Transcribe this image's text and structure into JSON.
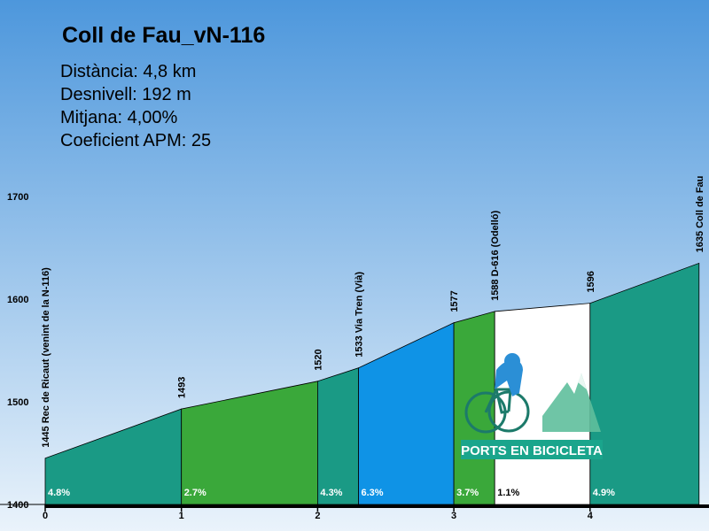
{
  "header": {
    "title": "Coll de Fau_vN-116",
    "stats": [
      "Distància: 4,8 km",
      "Desnivell: 192 m",
      "Mitjana: 4,00%",
      "Coeficient APM: 25"
    ]
  },
  "logo": {
    "text": "PORTS EN BICICLETA"
  },
  "colors": {
    "sky_top": "#4d97dc",
    "sky_bottom": "#eaf3fb",
    "teal": "#1a9a85",
    "green": "#3aa83a",
    "blue": "#0f93e6",
    "white": "#ffffff",
    "outline": "#000000"
  },
  "chart_data": {
    "type": "area",
    "xlim": [
      0,
      4.8
    ],
    "ylim": [
      1400,
      1700
    ],
    "x_ticks": [
      "0",
      "1",
      "2",
      "3",
      "4"
    ],
    "y_ticks": [
      "1400",
      "1500",
      "1600",
      "1700"
    ],
    "points": [
      {
        "km": 0.0,
        "alt": 1445,
        "label": "1445 Rec de Ricaut (venint de la N-116)"
      },
      {
        "km": 1.0,
        "alt": 1493,
        "label": "1493"
      },
      {
        "km": 2.0,
        "alt": 1520,
        "label": "1520"
      },
      {
        "km": 2.3,
        "alt": 1533,
        "label": "1533 Via Tren (Vià)"
      },
      {
        "km": 3.0,
        "alt": 1577,
        "label": "1577"
      },
      {
        "km": 3.3,
        "alt": 1588,
        "label": "1588 D-616 (Odelló)"
      },
      {
        "km": 4.0,
        "alt": 1596,
        "label": "1596"
      },
      {
        "km": 4.8,
        "alt": 1635,
        "label": "1635 Coll de Fau"
      }
    ],
    "segments": [
      {
        "from": 0.0,
        "to": 1.0,
        "grade": "4.8%",
        "color": "teal"
      },
      {
        "from": 1.0,
        "to": 2.0,
        "grade": "2.7%",
        "color": "green"
      },
      {
        "from": 2.0,
        "to": 2.3,
        "grade": "4.3%",
        "color": "teal"
      },
      {
        "from": 2.3,
        "to": 3.0,
        "grade": "6.3%",
        "color": "blue"
      },
      {
        "from": 3.0,
        "to": 3.3,
        "grade": "3.7%",
        "color": "green"
      },
      {
        "from": 3.3,
        "to": 4.0,
        "grade": "1.1%",
        "color": "white"
      },
      {
        "from": 4.0,
        "to": 4.8,
        "grade": "4.9%",
        "color": "teal"
      }
    ]
  }
}
